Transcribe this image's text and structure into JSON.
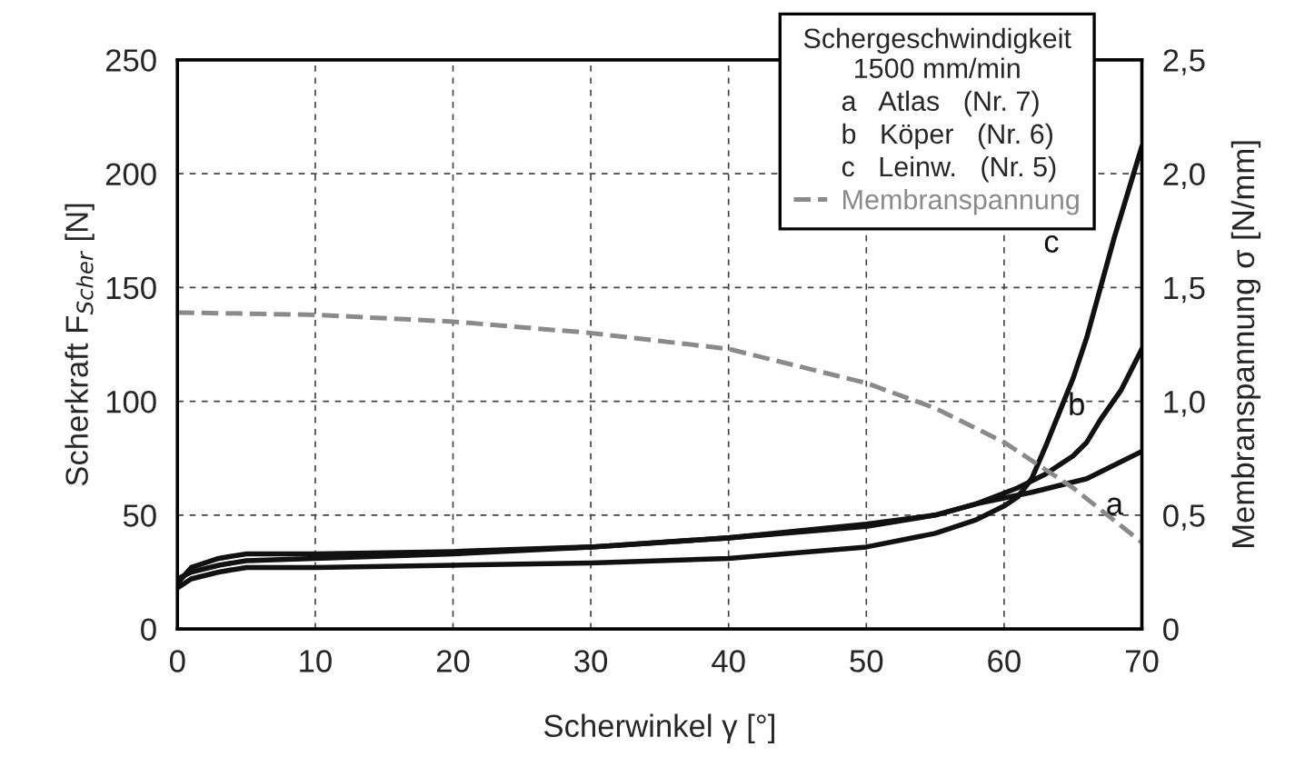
{
  "chart_data": {
    "type": "line",
    "xlabel": "Scherwinkel γ [°]",
    "ylabel": "Scherkraft F$_{Scher}$ [N]",
    "y2label": "Membranspannung σ [N/mm]",
    "legend_title": "Schergeschwindigkeit\n1500 mm/min",
    "xlim": [
      0,
      70
    ],
    "xticks": [
      0,
      10,
      20,
      30,
      40,
      50,
      60,
      70
    ],
    "ylim": [
      0,
      250
    ],
    "yticks": [
      0,
      50,
      100,
      150,
      200,
      250
    ],
    "y2lim": [
      0,
      2.5
    ],
    "y2ticks": [
      {
        "value": 0,
        "label": "0"
      },
      {
        "value": 0.5,
        "label": "0,5"
      },
      {
        "value": 1.0,
        "label": "1,0"
      },
      {
        "value": 1.5,
        "label": "1,5"
      },
      {
        "value": 2.0,
        "label": "2,0"
      },
      {
        "value": 2.5,
        "label": "2,5"
      }
    ],
    "grid": true,
    "legend": "top right",
    "line_style": "solid",
    "marker": "none",
    "series": [
      {
        "color": "#111111",
        "x": [
          0,
          1,
          3,
          5,
          8,
          10,
          20,
          30,
          40,
          50,
          55,
          58,
          62,
          66,
          70
        ],
        "values": [
          20,
          27,
          31,
          33,
          33,
          33,
          34,
          36,
          40,
          45,
          50,
          55,
          60,
          66,
          78
        ]
      },
      {
        "color": "#111111",
        "x": [
          0,
          1,
          3,
          5,
          10,
          20,
          30,
          40,
          50,
          55,
          58,
          61,
          63,
          65,
          66,
          67,
          68.5,
          70
        ],
        "values": [
          22,
          25,
          28,
          30,
          31,
          33,
          36,
          40,
          46,
          50,
          55,
          62,
          68,
          76,
          82,
          92,
          105,
          123
        ]
      },
      {
        "color": "#111111",
        "x": [
          0,
          1,
          3,
          5,
          10,
          20,
          30,
          40,
          50,
          55,
          58,
          60,
          61,
          62,
          63,
          64,
          65,
          66,
          67,
          68,
          69,
          70
        ],
        "values": [
          18,
          22,
          25,
          27,
          27,
          28,
          29,
          31,
          36,
          42,
          48,
          54,
          58,
          66,
          80,
          95,
          110,
          128,
          150,
          172,
          192,
          212
        ]
      },
      {
        "name": "Membranspannung",
        "color": "#8a8a8a",
        "axis": "y2",
        "line_style": "dashed",
        "x": [
          0,
          10,
          20,
          30,
          40,
          50,
          55,
          60,
          65,
          70
        ],
        "values": [
          1.39,
          1.38,
          1.35,
          1.3,
          1.23,
          1.08,
          0.97,
          0.82,
          0.62,
          0.38
        ]
      }
    ],
    "annotations": [
      "a   Atlas   (Nr. 7)",
      "b   Köper   (Nr. 6)",
      "c   Leinw.   (Nr. 5)",
      "a",
      "b",
      "c"
    ]
  }
}
